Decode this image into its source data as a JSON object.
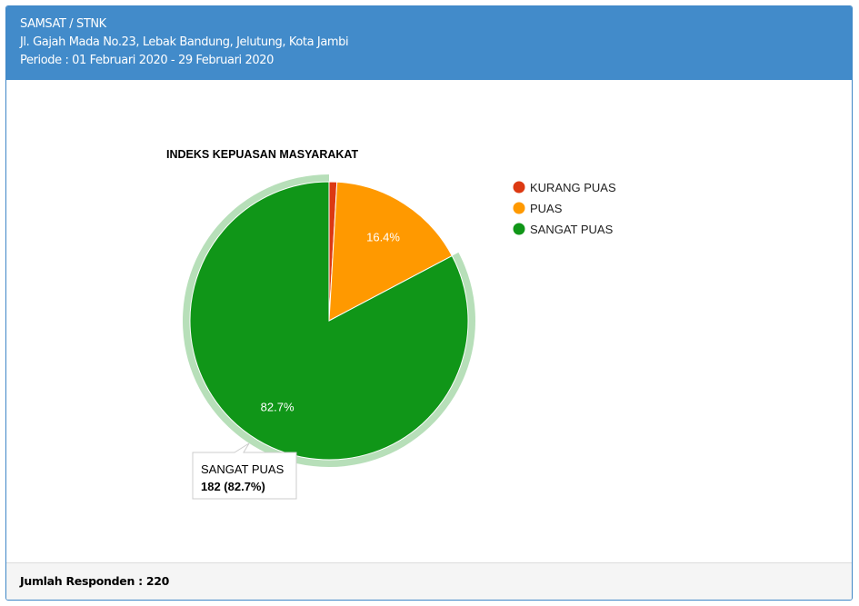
{
  "header": {
    "line1": "SAMSAT / STNK",
    "line2": "Jl. Gajah Mada No.23, Lebak Bandung, Jelutung, Kota Jambi",
    "line3": "Periode : 01 Februari 2020 - 29 Februari 2020"
  },
  "footer": {
    "respondents": "Jumlah Responden : 220"
  },
  "chart_data": {
    "type": "pie",
    "title": "INDEKS KEPUASAN MASYARAKAT",
    "legend_position": "right",
    "slices": [
      {
        "name": "KURANG PUAS",
        "value": 2,
        "percent_label": "",
        "color": "#dc3912"
      },
      {
        "name": "PUAS",
        "value": 36,
        "percent_label": "16.4%",
        "color": "#ff9900"
      },
      {
        "name": "SANGAT PUAS",
        "value": 182,
        "percent_label": "82.7%",
        "color": "#109618"
      }
    ],
    "tooltip": {
      "title": "SANGAT PUAS",
      "value": "182 (82.7%)"
    }
  }
}
